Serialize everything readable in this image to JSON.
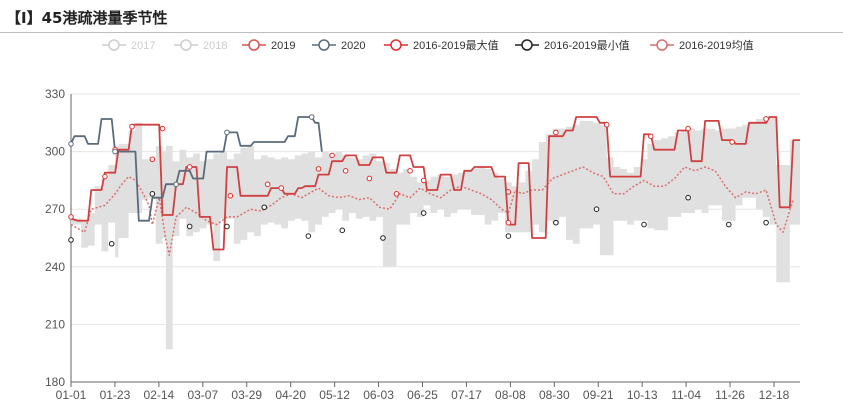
{
  "header": {
    "title": "【I】45港疏港量季节性"
  },
  "chart_data": {
    "type": "line",
    "title": "【I】45港疏港量季节性",
    "xlabel": "",
    "ylabel": "",
    "ylim": [
      180,
      330
    ],
    "yticks": [
      "180",
      "210",
      "240",
      "270",
      "300",
      "330"
    ],
    "xticks": [
      "01-01",
      "01-23",
      "02-14",
      "03-07",
      "03-29",
      "04-20",
      "05-12",
      "06-03",
      "06-25",
      "07-17",
      "08-08",
      "08-30",
      "09-21",
      "10-13",
      "11-04",
      "11-26",
      "12-18"
    ],
    "legend_position": "top",
    "legend": [
      {
        "name": "2017",
        "color": "#cccccc",
        "inactive": true
      },
      {
        "name": "2018",
        "color": "#cccccc",
        "inactive": true
      },
      {
        "name": "2019",
        "color": "#d9534f",
        "inactive": false
      },
      {
        "name": "2020",
        "color": "#5b6b7b",
        "inactive": false
      },
      {
        "name": "2016-2019最大值",
        "color": "#e02f2f",
        "inactive": false
      },
      {
        "name": "2016-2019最小值",
        "color": "#222222",
        "inactive": false
      },
      {
        "name": "2016-2019均值",
        "color": "#d96f6f",
        "inactive": false
      }
    ],
    "series_2019": [
      [
        0,
        265
      ],
      [
        2,
        264
      ],
      [
        5,
        264
      ],
      [
        6,
        280
      ],
      [
        9,
        280
      ],
      [
        10,
        289
      ],
      [
        13,
        289
      ],
      [
        14,
        301
      ],
      [
        17,
        301
      ],
      [
        18,
        314
      ],
      [
        26,
        314
      ],
      [
        27,
        267
      ],
      [
        30,
        267
      ],
      [
        31,
        283
      ],
      [
        33,
        283
      ],
      [
        34,
        292
      ],
      [
        37,
        292
      ],
      [
        38,
        266
      ],
      [
        41,
        266
      ],
      [
        42,
        249
      ],
      [
        45,
        249
      ],
      [
        46,
        292
      ],
      [
        49,
        292
      ],
      [
        50,
        277
      ],
      [
        58,
        277
      ],
      [
        59,
        281
      ],
      [
        62,
        281
      ],
      [
        63,
        278
      ],
      [
        66,
        278
      ],
      [
        67,
        281
      ],
      [
        68,
        281
      ],
      [
        69,
        282
      ],
      [
        72,
        282
      ],
      [
        73,
        288
      ],
      [
        76,
        288
      ],
      [
        77,
        295
      ],
      [
        80,
        295
      ],
      [
        81,
        298
      ],
      [
        84,
        298
      ],
      [
        85,
        293
      ],
      [
        88,
        293
      ],
      [
        89,
        297
      ],
      [
        92,
        297
      ],
      [
        93,
        289
      ],
      [
        96,
        289
      ],
      [
        97,
        298
      ],
      [
        100,
        298
      ],
      [
        101,
        292
      ],
      [
        104,
        292
      ],
      [
        105,
        280
      ],
      [
        108,
        280
      ],
      [
        109,
        288
      ],
      [
        112,
        288
      ],
      [
        113,
        280
      ],
      [
        115,
        280
      ],
      [
        116,
        290
      ],
      [
        118,
        290
      ],
      [
        119,
        292
      ],
      [
        124,
        292
      ],
      [
        125,
        287
      ],
      [
        128,
        287
      ],
      [
        129,
        262
      ],
      [
        131,
        262
      ],
      [
        132,
        294
      ],
      [
        135,
        294
      ],
      [
        136,
        255
      ],
      [
        140,
        255
      ],
      [
        141,
        308
      ],
      [
        145,
        308
      ],
      [
        146,
        311
      ],
      [
        148,
        311
      ],
      [
        149,
        318
      ],
      [
        155,
        318
      ],
      [
        156,
        315
      ],
      [
        158,
        315
      ],
      [
        159,
        287
      ],
      [
        168,
        287
      ],
      [
        169,
        309
      ],
      [
        171,
        309
      ],
      [
        172,
        301
      ],
      [
        178,
        301
      ],
      [
        179,
        311
      ],
      [
        182,
        311
      ],
      [
        183,
        295
      ],
      [
        186,
        295
      ],
      [
        187,
        316
      ],
      [
        191,
        316
      ],
      [
        192,
        306
      ],
      [
        195,
        306
      ],
      [
        196,
        304
      ],
      [
        199,
        304
      ],
      [
        200,
        315
      ],
      [
        205,
        315
      ],
      [
        206,
        318
      ],
      [
        208,
        318
      ],
      [
        209,
        271
      ],
      [
        212,
        271
      ],
      [
        213,
        306
      ],
      [
        215,
        306
      ]
    ],
    "series_2020": [
      [
        0,
        304
      ],
      [
        1,
        308
      ],
      [
        4,
        308
      ],
      [
        5,
        304
      ],
      [
        8,
        304
      ],
      [
        9,
        317
      ],
      [
        12,
        317
      ],
      [
        13,
        300
      ],
      [
        19,
        300
      ],
      [
        20,
        264
      ],
      [
        23,
        264
      ],
      [
        24,
        276
      ],
      [
        27,
        276
      ],
      [
        28,
        283
      ],
      [
        31,
        283
      ],
      [
        32,
        290
      ],
      [
        35,
        290
      ],
      [
        36,
        286
      ],
      [
        39,
        286
      ],
      [
        40,
        300
      ],
      [
        45,
        300
      ],
      [
        46,
        310
      ],
      [
        49,
        310
      ],
      [
        50,
        303
      ],
      [
        53,
        303
      ],
      [
        54,
        305
      ],
      [
        63,
        305
      ],
      [
        64,
        308
      ],
      [
        66,
        308
      ],
      [
        67,
        318
      ],
      [
        71,
        318
      ],
      [
        72,
        315
      ],
      [
        73,
        315
      ],
      [
        74,
        300
      ]
    ],
    "mean": [
      [
        0,
        262
      ],
      [
        4,
        258
      ],
      [
        6,
        270
      ],
      [
        10,
        272
      ],
      [
        13,
        278
      ],
      [
        15,
        283
      ],
      [
        17,
        287
      ],
      [
        19,
        285
      ],
      [
        21,
        279
      ],
      [
        23,
        272
      ],
      [
        24,
        262
      ],
      [
        26,
        276
      ],
      [
        28,
        254
      ],
      [
        29,
        246
      ],
      [
        31,
        266
      ],
      [
        34,
        271
      ],
      [
        37,
        268
      ],
      [
        40,
        264
      ],
      [
        43,
        262
      ],
      [
        46,
        266
      ],
      [
        49,
        266
      ],
      [
        53,
        270
      ],
      [
        56,
        269
      ],
      [
        59,
        272
      ],
      [
        62,
        276
      ],
      [
        65,
        278
      ],
      [
        68,
        276
      ],
      [
        71,
        279
      ],
      [
        73,
        281
      ],
      [
        76,
        277
      ],
      [
        79,
        276
      ],
      [
        82,
        277
      ],
      [
        85,
        275
      ],
      [
        88,
        276
      ],
      [
        91,
        271
      ],
      [
        94,
        270
      ],
      [
        97,
        278
      ],
      [
        100,
        276
      ],
      [
        103,
        281
      ],
      [
        106,
        278
      ],
      [
        109,
        276
      ],
      [
        112,
        280
      ],
      [
        115,
        282
      ],
      [
        118,
        280
      ],
      [
        121,
        278
      ],
      [
        124,
        275
      ],
      [
        127,
        270
      ],
      [
        129,
        268
      ],
      [
        131,
        280
      ],
      [
        133,
        278
      ],
      [
        136,
        280
      ],
      [
        139,
        280
      ],
      [
        142,
        286
      ],
      [
        145,
        288
      ],
      [
        148,
        290
      ],
      [
        151,
        292
      ],
      [
        154,
        289
      ],
      [
        157,
        287
      ],
      [
        160,
        278
      ],
      [
        163,
        278
      ],
      [
        166,
        282
      ],
      [
        169,
        285
      ],
      [
        172,
        282
      ],
      [
        175,
        282
      ],
      [
        178,
        286
      ],
      [
        181,
        292
      ],
      [
        184,
        290
      ],
      [
        187,
        292
      ],
      [
        190,
        290
      ],
      [
        193,
        282
      ],
      [
        196,
        276
      ],
      [
        199,
        279
      ],
      [
        202,
        278
      ],
      [
        205,
        280
      ],
      [
        208,
        262
      ],
      [
        210,
        258
      ],
      [
        213,
        275
      ]
    ],
    "max_points": [
      [
        0,
        266
      ],
      [
        10,
        287
      ],
      [
        13,
        301
      ],
      [
        18,
        313
      ],
      [
        24,
        296
      ],
      [
        27,
        312
      ],
      [
        35,
        292
      ],
      [
        47,
        277
      ],
      [
        58,
        283
      ],
      [
        62,
        281
      ],
      [
        73,
        291
      ],
      [
        77,
        298
      ],
      [
        81,
        290
      ],
      [
        88,
        286
      ],
      [
        96,
        278
      ],
      [
        100,
        290
      ],
      [
        104,
        285
      ],
      [
        129,
        263
      ],
      [
        129,
        279
      ],
      [
        143,
        310
      ],
      [
        158,
        314
      ],
      [
        171,
        308
      ],
      [
        182,
        312
      ],
      [
        195,
        305
      ],
      [
        205,
        317
      ]
    ],
    "min_points": [
      [
        0,
        254
      ],
      [
        12,
        252
      ],
      [
        24,
        278
      ],
      [
        35,
        261
      ],
      [
        46,
        261
      ],
      [
        57,
        271
      ],
      [
        70,
        256
      ],
      [
        80,
        259
      ],
      [
        92,
        255
      ],
      [
        104,
        268
      ],
      [
        129,
        256
      ],
      [
        143,
        263
      ],
      [
        155,
        270
      ],
      [
        169,
        262
      ],
      [
        182,
        276
      ],
      [
        194,
        262
      ],
      [
        205,
        263
      ]
    ],
    "range_band": [
      [
        0,
        262,
        265
      ],
      [
        3,
        250,
        264
      ],
      [
        5,
        251,
        268
      ],
      [
        7,
        262,
        282
      ],
      [
        9,
        248,
        286
      ],
      [
        11,
        263,
        293
      ],
      [
        13,
        245,
        303
      ],
      [
        14,
        255,
        304
      ],
      [
        17,
        268,
        311
      ],
      [
        19,
        268,
        315
      ],
      [
        21,
        275,
        296
      ],
      [
        23,
        276,
        296
      ],
      [
        25,
        252,
        303
      ],
      [
        27,
        255,
        300
      ],
      [
        28,
        197,
        303
      ],
      [
        30,
        256,
        295
      ],
      [
        32,
        265,
        301
      ],
      [
        34,
        256,
        297
      ],
      [
        36,
        258,
        299
      ],
      [
        38,
        260,
        295
      ],
      [
        40,
        262,
        296
      ],
      [
        42,
        243,
        299
      ],
      [
        44,
        265,
        300
      ],
      [
        46,
        265,
        296
      ],
      [
        48,
        252,
        299
      ],
      [
        50,
        254,
        302
      ],
      [
        52,
        258,
        303
      ],
      [
        54,
        256,
        296
      ],
      [
        56,
        262,
        298
      ],
      [
        58,
        263,
        297
      ],
      [
        60,
        262,
        296
      ],
      [
        62,
        260,
        297
      ],
      [
        64,
        264,
        296
      ],
      [
        66,
        265,
        298
      ],
      [
        68,
        264,
        299
      ],
      [
        70,
        258,
        300
      ],
      [
        72,
        262,
        297
      ],
      [
        74,
        266,
        300
      ],
      [
        76,
        268,
        299
      ],
      [
        78,
        270,
        300
      ],
      [
        80,
        264,
        298
      ],
      [
        82,
        268,
        297
      ],
      [
        84,
        265,
        296
      ],
      [
        86,
        266,
        298
      ],
      [
        88,
        264,
        299
      ],
      [
        90,
        266,
        295
      ],
      [
        92,
        240,
        294
      ],
      [
        94,
        240,
        291
      ],
      [
        96,
        262,
        289
      ],
      [
        98,
        262,
        291
      ],
      [
        100,
        268,
        287
      ],
      [
        102,
        266,
        284
      ],
      [
        104,
        272,
        285
      ],
      [
        106,
        268,
        287
      ],
      [
        108,
        270,
        288
      ],
      [
        110,
        266,
        287
      ],
      [
        112,
        268,
        288
      ],
      [
        114,
        270,
        289
      ],
      [
        116,
        270,
        290
      ],
      [
        118,
        267,
        291
      ],
      [
        120,
        267,
        292
      ],
      [
        122,
        262,
        291
      ],
      [
        124,
        264,
        289
      ],
      [
        126,
        268,
        286
      ],
      [
        128,
        258,
        284
      ],
      [
        130,
        258,
        282
      ],
      [
        132,
        258,
        284
      ],
      [
        134,
        258,
        290
      ],
      [
        136,
        262,
        296
      ],
      [
        138,
        258,
        305
      ],
      [
        140,
        264,
        309
      ],
      [
        142,
        262,
        312
      ],
      [
        144,
        266,
        312
      ],
      [
        146,
        254,
        313
      ],
      [
        148,
        252,
        314
      ],
      [
        150,
        260,
        316
      ],
      [
        152,
        260,
        316
      ],
      [
        154,
        262,
        315
      ],
      [
        156,
        246,
        314
      ],
      [
        158,
        246,
        297
      ],
      [
        160,
        264,
        292
      ],
      [
        162,
        264,
        291
      ],
      [
        164,
        262,
        289
      ],
      [
        166,
        264,
        292
      ],
      [
        168,
        264,
        296
      ],
      [
        170,
        260,
        304
      ],
      [
        172,
        259,
        306
      ],
      [
        174,
        259,
        307
      ],
      [
        176,
        266,
        308
      ],
      [
        178,
        266,
        310
      ],
      [
        180,
        268,
        311
      ],
      [
        182,
        268,
        312
      ],
      [
        184,
        270,
        311
      ],
      [
        186,
        268,
        312
      ],
      [
        188,
        272,
        312
      ],
      [
        190,
        272,
        311
      ],
      [
        192,
        264,
        312
      ],
      [
        194,
        264,
        312
      ],
      [
        196,
        272,
        313
      ],
      [
        198,
        276,
        314
      ],
      [
        200,
        276,
        315
      ],
      [
        202,
        270,
        317
      ],
      [
        204,
        266,
        318
      ],
      [
        206,
        262,
        318
      ],
      [
        208,
        232,
        293
      ],
      [
        210,
        232,
        293
      ],
      [
        212,
        262,
        306
      ],
      [
        215,
        262,
        306
      ]
    ]
  }
}
